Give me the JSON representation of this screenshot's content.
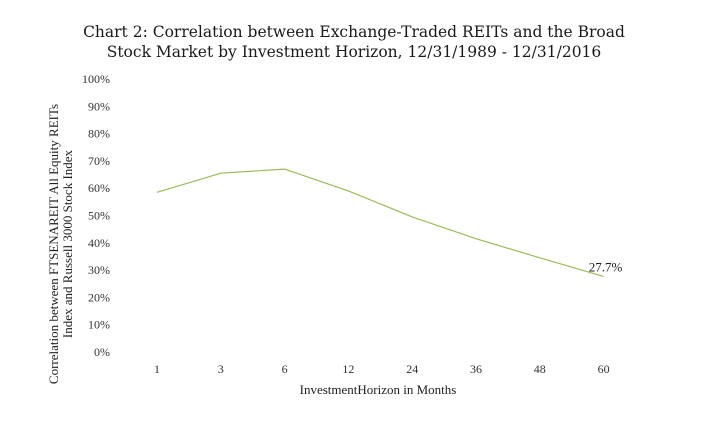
{
  "chart_data": {
    "type": "line",
    "title_line1": "Chart 2: Correlation  between Exchange-Traded REITs and the Broad",
    "title_line2": "Stock Market by Investment Horizon, 12/31/1989 - 12/31/2016",
    "xlabel": "InvestmentHorizon in Months",
    "ylabel_line1": "Correlation between FTSENAREIT All Equity REITs",
    "ylabel_line2": "Index and Russell 3000 Stock Index",
    "categories": [
      "1",
      "3",
      "6",
      "12",
      "24",
      "36",
      "48",
      "60"
    ],
    "y_ticks": [
      "0%",
      "10%",
      "20%",
      "30%",
      "40%",
      "50%",
      "60%",
      "70%",
      "80%",
      "90%",
      "100%"
    ],
    "ylim": [
      0,
      100
    ],
    "grid": false,
    "series": [
      {
        "values": [
          58.5,
          65.5,
          67,
          59,
          49.5,
          41.5,
          34.5,
          27.7
        ]
      }
    ],
    "data_label": {
      "index": 7,
      "text": "27.7%"
    },
    "line_color": "#9bbb59"
  }
}
